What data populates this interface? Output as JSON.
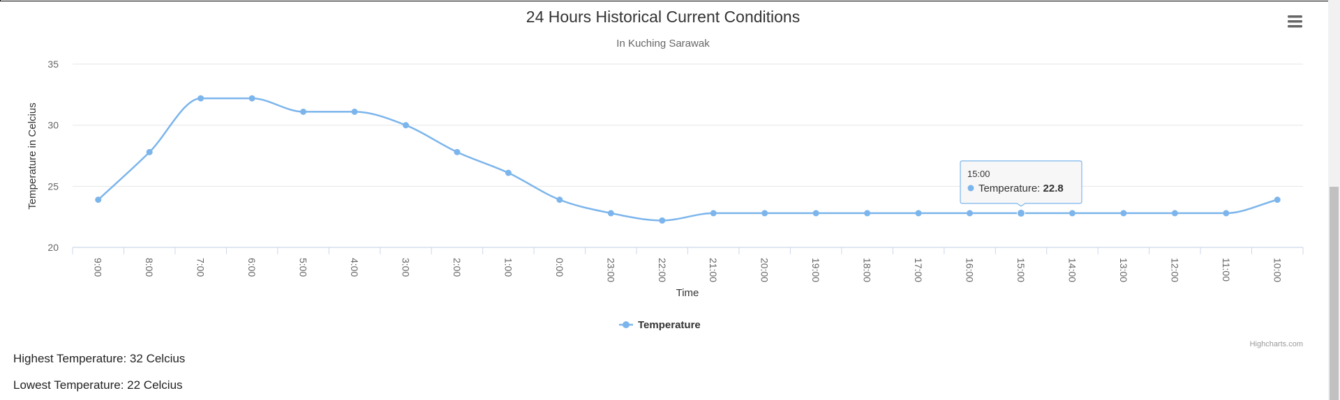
{
  "chart_data": {
    "type": "line",
    "title": "24 Hours Historical Current Conditions",
    "subtitle": "In Kuching Sarawak",
    "xlabel": "Time",
    "ylabel": "Temperature in Celcius",
    "categories": [
      "9:00",
      "8:00",
      "7:00",
      "6:00",
      "5:00",
      "4:00",
      "3:00",
      "2:00",
      "1:00",
      "0:00",
      "23:00",
      "22:00",
      "21:00",
      "20:00",
      "19:00",
      "18:00",
      "17:00",
      "16:00",
      "15:00",
      "14:00",
      "13:00",
      "12:00",
      "11:00",
      "10:00"
    ],
    "series": [
      {
        "name": "Temperature",
        "color": "#7cb5ec",
        "values": [
          23.9,
          27.8,
          32.2,
          32.2,
          31.1,
          31.1,
          30.0,
          27.8,
          26.1,
          23.9,
          22.8,
          22.2,
          22.8,
          22.8,
          22.8,
          22.8,
          22.8,
          22.8,
          22.8,
          22.8,
          22.8,
          22.8,
          22.8,
          23.9
        ]
      }
    ],
    "ylim": [
      20,
      35
    ],
    "yticks": [
      "20",
      "25",
      "30",
      "35"
    ],
    "grid": true,
    "legend": "bottom-center",
    "tooltip": {
      "category": "15:00",
      "series_label": "Temperature: ",
      "value": "22.8"
    },
    "credits": "Highcharts.com"
  },
  "summary": {
    "highest": "Highest Temperature: 32 Celcius",
    "lowest": "Lowest Temperature: 22 Celcius"
  },
  "menu_icon": "hamburger-menu-icon"
}
